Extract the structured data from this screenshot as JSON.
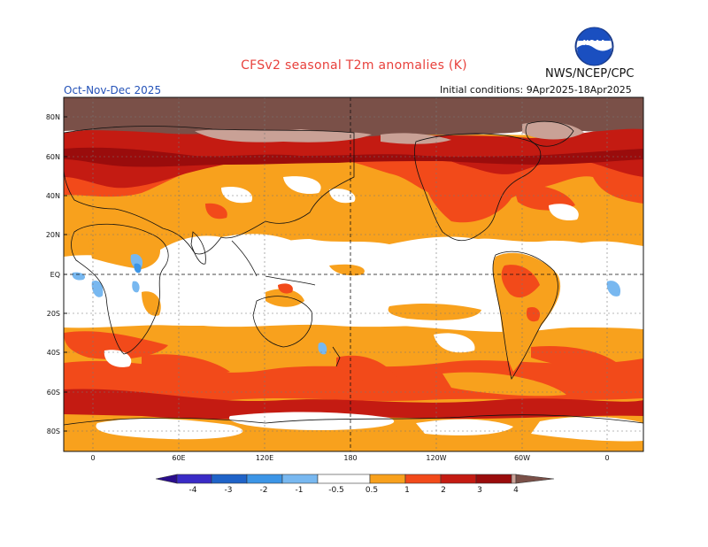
{
  "title": "CFSv2 seasonal T2m anomalies (K)",
  "agency": "NWS/NCEP/CPC",
  "logo_text": "NOAA",
  "season": "Oct-Nov-Dec 2025",
  "initial_conditions": "Initial conditions: 9Apr2025-18Apr2025",
  "lat_labels": [
    "80N",
    "60N",
    "40N",
    "20N",
    "EQ",
    "20S",
    "40S",
    "60S",
    "80S"
  ],
  "lon_labels": [
    "0",
    "60E",
    "120E",
    "180",
    "120W",
    "60W",
    "0"
  ],
  "colorbar": {
    "labels": [
      "-4",
      "-3",
      "-2",
      "-1",
      "-0.5",
      "0.5",
      "1",
      "2",
      "3",
      "4"
    ],
    "colors": {
      "lt_-4": "#2a0d8c",
      "-4_-3": "#3a2bc6",
      "-3_-2": "#1f63c8",
      "-2_-1": "#3c95e6",
      "-1_-0.5": "#78b8f0",
      "neutral": "#ffffff",
      "0.5_1": "#f8a11d",
      "1_2": "#f24a1a",
      "2_3": "#c41b12",
      "3_4": "#9a0c0c",
      "4_plus": "#c9a196",
      "gt_4": "#7a5048"
    }
  }
}
